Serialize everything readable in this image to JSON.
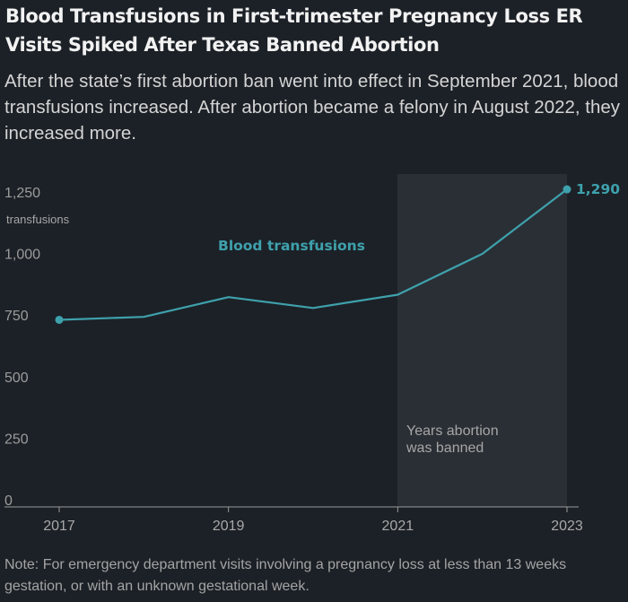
{
  "header": {
    "title": "Blood Transfusions in First-trimester Pregnancy Loss ER Visits Spiked After Texas Banned Abortion",
    "subtitle": "After the state’s first abortion ban went into effect in September 2021, blood transfusions increased. After abortion became a felony in August 2022, they increased more."
  },
  "footer": {
    "note": "Note: For emergency department visits involving a pregnancy loss at less than 13 weeks gestation, or with an unknown gestational week."
  },
  "colors": {
    "line": "#3ea1ac",
    "background": "#1c2127",
    "band": "#2a2f35"
  },
  "chart_data": {
    "type": "line",
    "title": "Blood Transfusions in First-trimester Pregnancy Loss ER Visits Spiked After Texas Banned Abortion",
    "ylabel": "transfusions",
    "xlabel": "",
    "x": [
      2017,
      2018,
      2019,
      2020,
      2021,
      2022,
      2023
    ],
    "x_ticks": [
      "2017",
      "2019",
      "2021",
      "2023"
    ],
    "y_ticks": [
      "0",
      "250",
      "500",
      "750",
      "1,000",
      "1,250"
    ],
    "ylim": [
      0,
      1300
    ],
    "series": [
      {
        "name": "Blood transfusions",
        "values": [
          760,
          772,
          852,
          808,
          862,
          1028,
          1290
        ]
      }
    ],
    "end_label": "1,290",
    "shaded_region": {
      "from": 2021,
      "to": 2023,
      "label_line1": "Years abortion",
      "label_line2": "was banned"
    }
  }
}
